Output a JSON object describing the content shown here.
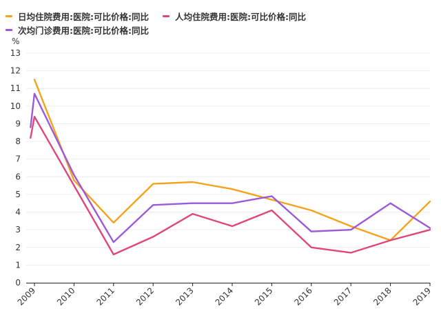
{
  "chart_data": {
    "type": "line",
    "title": "",
    "xlabel": "",
    "ylabel": "",
    "y_unit": "%",
    "x": [
      2009,
      2010,
      2011,
      2012,
      2013,
      2014,
      2015,
      2016,
      2017,
      2018,
      2019
    ],
    "x_labels": [
      "2009",
      "2010",
      "2011",
      "2012",
      "2013",
      "2014",
      "2015",
      "2016",
      "2017",
      "2018",
      "2019"
    ],
    "ylim": [
      0,
      13
    ],
    "y_ticks": [
      "0",
      "1",
      "2",
      "3",
      "4",
      "5",
      "6",
      "7",
      "8",
      "9",
      "10",
      "11",
      "12",
      "13"
    ],
    "grid": true,
    "legend_position": "top-left",
    "series": [
      {
        "name": "日均住院费用:医院:可比价格:同比",
        "color": "#f5a21a",
        "x": [
          2009,
          2010,
          2011,
          2012,
          2013,
          2014,
          2015,
          2016,
          2017,
          2018,
          2019
        ],
        "values": [
          11.5,
          5.8,
          3.4,
          5.6,
          5.7,
          5.3,
          4.7,
          4.1,
          3.2,
          2.4,
          4.6
        ]
      },
      {
        "name": "人均住院费用:医院:可比价格:同比",
        "color": "#e0457b",
        "x": [
          2008.9,
          2009,
          2010,
          2011,
          2012,
          2013,
          2014,
          2015,
          2016,
          2017,
          2018,
          2019
        ],
        "values": [
          8.2,
          9.4,
          5.5,
          1.6,
          2.6,
          3.9,
          3.2,
          4.1,
          2.0,
          1.7,
          2.4,
          3.0
        ]
      },
      {
        "name": "次均门诊费用:医院:可比价格:同比",
        "color": "#9b59d9",
        "x": [
          2008.9,
          2009,
          2010,
          2011,
          2012,
          2013,
          2014,
          2015,
          2016,
          2017,
          2018,
          2019
        ],
        "values": [
          8.8,
          10.7,
          6.1,
          2.3,
          4.4,
          4.5,
          4.5,
          4.9,
          2.9,
          3.0,
          4.5,
          3.1
        ]
      }
    ]
  }
}
